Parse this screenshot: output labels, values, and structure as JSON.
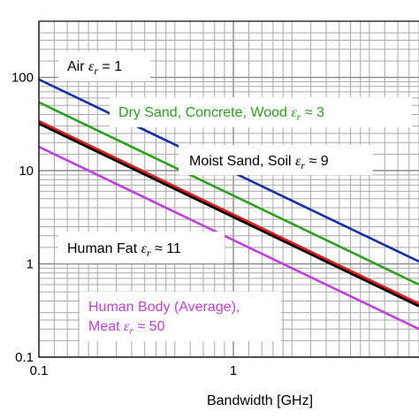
{
  "chart_data": {
    "type": "line",
    "title": "",
    "xlabel": "Bandwidth [GHz]",
    "ylabel": "",
    "x_scale": "log",
    "y_scale": "log",
    "xlim": [
      0.1,
      9
    ],
    "ylim": [
      0.1,
      400
    ],
    "grid": true,
    "x_ticks": [
      {
        "value": 0.1,
        "label": "0.1"
      },
      {
        "value": 1,
        "label": "1"
      }
    ],
    "y_ticks": [
      {
        "value": 0.1,
        "label": "0.1"
      },
      {
        "value": 1,
        "label": "1"
      },
      {
        "value": 10,
        "label": "10"
      },
      {
        "value": 100,
        "label": "100"
      }
    ],
    "series": [
      {
        "color": "#1230a8",
        "x": [
          0.1,
          9
        ],
        "y": [
          95,
          1.06
        ]
      },
      {
        "color": "#2aa21a",
        "x": [
          0.1,
          9
        ],
        "y": [
          54,
          0.6
        ]
      },
      {
        "color": "#000000",
        "x": [
          0.1,
          9
        ],
        "y": [
          32,
          0.353
        ]
      },
      {
        "color": "#e0201c",
        "x": [
          0.1,
          9
        ],
        "y": [
          34,
          0.375
        ]
      },
      {
        "color": "#c23ee0",
        "x": [
          0.1,
          9
        ],
        "y": [
          18,
          0.2
        ]
      }
    ],
    "annotations": [
      {
        "id": "air",
        "text": "Air εr = 1",
        "color": "#000000"
      },
      {
        "id": "drysand",
        "text": "Dry Sand, Concrete, Wood εr ≈ 3",
        "color": "#2aa21a"
      },
      {
        "id": "moist",
        "text": "Moist Sand, Soil εr ≈ 9",
        "color": "#000000"
      },
      {
        "id": "fat",
        "text": "Human Fat εr ≈ 11",
        "color": "#000000"
      },
      {
        "id": "body1",
        "text": "Human Body (Average),",
        "color": "#c23ee0"
      },
      {
        "id": "body2",
        "text": "Meat εr ≈ 50",
        "color": "#c23ee0"
      }
    ]
  }
}
